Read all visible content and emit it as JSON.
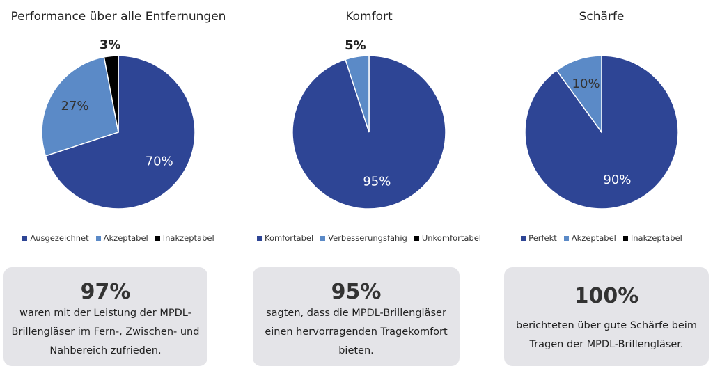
{
  "chart_data": [
    {
      "type": "pie",
      "title": "Performance über alle Entfernungen",
      "categories": [
        "Ausgezeichnet",
        "Akzeptabel",
        "Inakzeptabel"
      ],
      "values": [
        70,
        27,
        3
      ],
      "value_labels": [
        "70%",
        "27%",
        "3%"
      ],
      "colors": [
        "#2e4595",
        "#5b8ac7",
        "#000000"
      ]
    },
    {
      "type": "pie",
      "title": "Komfort",
      "categories": [
        "Komfortabel",
        "Verbesserungsfähig",
        "Unkomfortabel"
      ],
      "values": [
        95,
        5,
        0
      ],
      "value_labels": [
        "95%",
        "5%",
        null
      ],
      "colors": [
        "#2e4595",
        "#5b8ac7",
        "#000000"
      ]
    },
    {
      "type": "pie",
      "title": "Schärfe",
      "categories": [
        "Perfekt",
        "Akzeptabel",
        "Inakzeptabel"
      ],
      "values": [
        90,
        10,
        0
      ],
      "value_labels": [
        "90%",
        "10%",
        null
      ],
      "colors": [
        "#2e4595",
        "#5b8ac7",
        "#000000"
      ]
    }
  ],
  "cards": [
    {
      "headline": "97%",
      "lines": [
        "waren mit der Leistung der MPDL-",
        "Brillengläser im Fern-, Zwischen- und",
        "Nahbereich zufrieden."
      ]
    },
    {
      "headline": "95%",
      "lines": [
        "sagten, dass die MPDL-Brillengläser",
        "einen hervorragenden Tragekomfort",
        "bieten."
      ]
    },
    {
      "headline": "100%",
      "lines": [
        "berichteten über gute Schärfe beim",
        "Tragen der MPDL-Brillengläser."
      ]
    }
  ]
}
